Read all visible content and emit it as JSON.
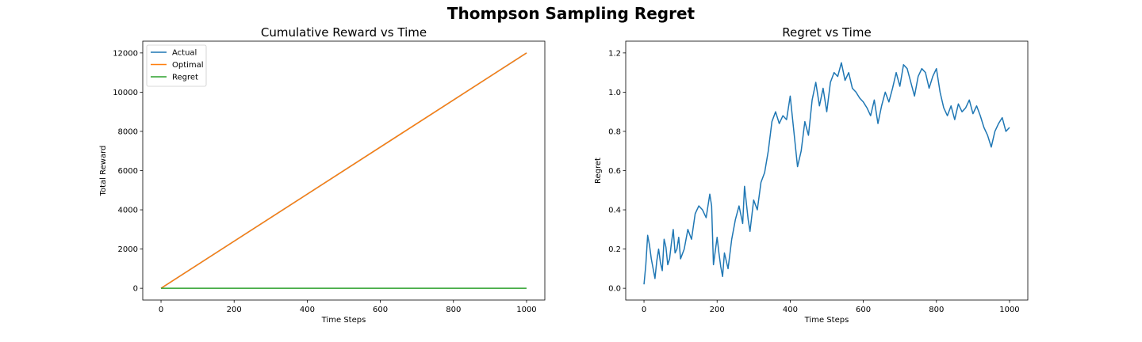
{
  "suptitle": "Thompson Sampling Regret",
  "chart_data": [
    {
      "type": "line",
      "title": "Cumulative Reward vs Time",
      "xlabel": "Time Steps",
      "ylabel": "Total Reward",
      "xlim": [
        -50,
        1050
      ],
      "ylim": [
        -600,
        12600
      ],
      "xticks": [
        0,
        200,
        400,
        600,
        800,
        1000
      ],
      "yticks": [
        0,
        2000,
        4000,
        6000,
        8000,
        10000,
        12000
      ],
      "grid": false,
      "legend_position": "upper left",
      "series": [
        {
          "name": "Actual",
          "color": "#1f77b4",
          "x": [
            0,
            1000
          ],
          "y": [
            0,
            11999
          ]
        },
        {
          "name": "Optimal",
          "color": "#ff7f0e",
          "x": [
            0,
            1000
          ],
          "y": [
            0,
            12000
          ]
        },
        {
          "name": "Regret",
          "color": "#2ca02c",
          "x": [
            0,
            1000
          ],
          "y": [
            0,
            1
          ]
        }
      ]
    },
    {
      "type": "line",
      "title": "Regret vs Time",
      "xlabel": "Time Steps",
      "ylabel": "Regret",
      "xlim": [
        -50,
        1050
      ],
      "ylim": [
        -0.06,
        1.26
      ],
      "xticks": [
        0,
        200,
        400,
        600,
        800,
        1000
      ],
      "yticks": [
        0.0,
        0.2,
        0.4,
        0.6,
        0.8,
        1.0,
        1.2
      ],
      "grid": false,
      "series": [
        {
          "name": "",
          "color": "#1f77b4",
          "x": [
            0,
            5,
            10,
            15,
            20,
            25,
            30,
            35,
            40,
            45,
            50,
            55,
            60,
            65,
            70,
            75,
            80,
            85,
            90,
            95,
            100,
            110,
            120,
            130,
            140,
            150,
            160,
            170,
            180,
            185,
            190,
            200,
            205,
            210,
            215,
            220,
            230,
            240,
            250,
            260,
            270,
            275,
            285,
            290,
            300,
            310,
            320,
            330,
            340,
            350,
            360,
            370,
            380,
            390,
            400,
            410,
            420,
            430,
            440,
            450,
            460,
            470,
            480,
            490,
            500,
            510,
            520,
            530,
            540,
            550,
            560,
            570,
            580,
            590,
            600,
            610,
            620,
            630,
            640,
            650,
            660,
            670,
            680,
            690,
            700,
            710,
            720,
            730,
            740,
            750,
            760,
            770,
            780,
            790,
            800,
            810,
            820,
            830,
            840,
            850,
            860,
            870,
            880,
            890,
            900,
            910,
            920,
            930,
            940,
            950,
            960,
            970,
            980,
            990,
            1000
          ],
          "y": [
            0.02,
            0.12,
            0.27,
            0.22,
            0.15,
            0.1,
            0.05,
            0.14,
            0.2,
            0.13,
            0.09,
            0.25,
            0.21,
            0.12,
            0.15,
            0.23,
            0.3,
            0.18,
            0.2,
            0.26,
            0.15,
            0.2,
            0.3,
            0.25,
            0.38,
            0.42,
            0.4,
            0.36,
            0.48,
            0.42,
            0.12,
            0.26,
            0.18,
            0.11,
            0.06,
            0.18,
            0.1,
            0.25,
            0.35,
            0.42,
            0.33,
            0.52,
            0.35,
            0.29,
            0.45,
            0.4,
            0.54,
            0.59,
            0.7,
            0.85,
            0.9,
            0.84,
            0.88,
            0.86,
            0.98,
            0.8,
            0.62,
            0.7,
            0.85,
            0.78,
            0.96,
            1.05,
            0.93,
            1.02,
            0.9,
            1.05,
            1.1,
            1.08,
            1.15,
            1.06,
            1.1,
            1.02,
            1.0,
            0.97,
            0.95,
            0.92,
            0.88,
            0.96,
            0.84,
            0.93,
            1.0,
            0.95,
            1.02,
            1.1,
            1.03,
            1.14,
            1.12,
            1.05,
            0.98,
            1.08,
            1.12,
            1.1,
            1.02,
            1.08,
            1.12,
            1.0,
            0.92,
            0.88,
            0.93,
            0.86,
            0.94,
            0.9,
            0.92,
            0.96,
            0.89,
            0.93,
            0.88,
            0.82,
            0.78,
            0.72,
            0.8,
            0.84,
            0.87,
            0.8,
            0.82
          ]
        }
      ]
    }
  ]
}
